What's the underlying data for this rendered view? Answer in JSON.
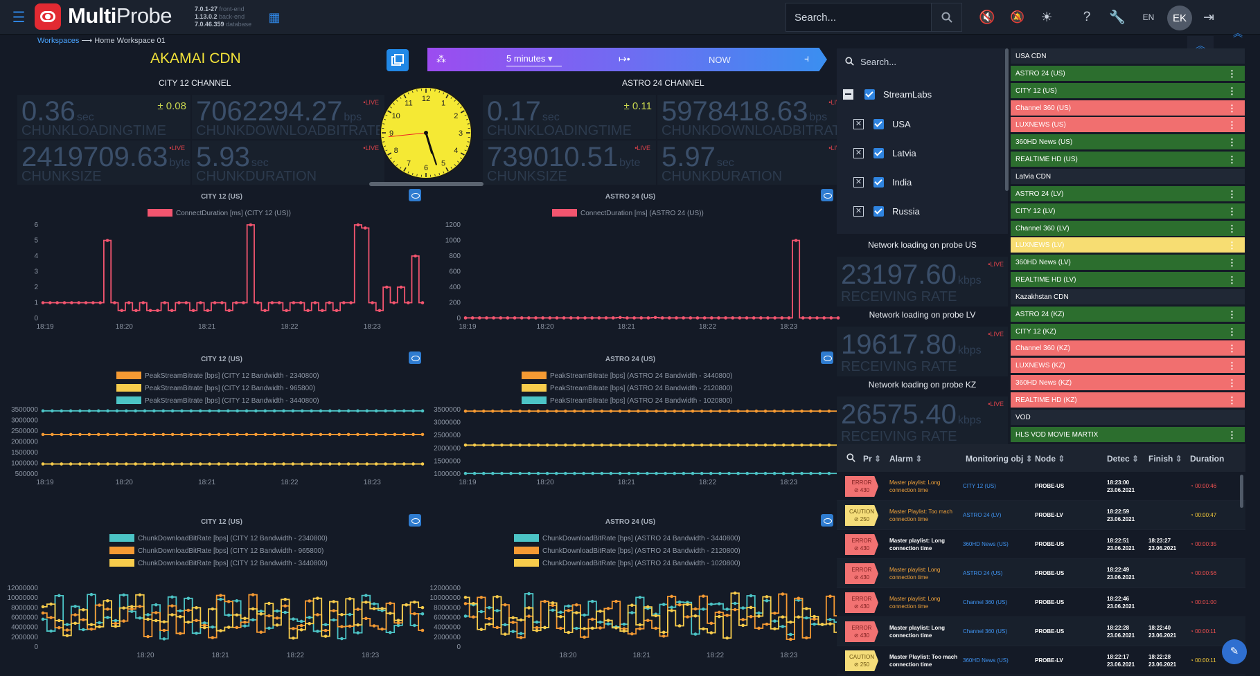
{
  "app": {
    "name_bold": "Multi",
    "name_light": "Probe",
    "versions": [
      {
        "v": "7.0.1-27",
        "l": "front-end"
      },
      {
        "v": "1.13.0.2",
        "l": "back-end"
      },
      {
        "v": "7.0.46.359",
        "l": "database"
      }
    ],
    "search_placeholder": "Search...",
    "lang": "EN",
    "avatar": "EK"
  },
  "breadcrumb": {
    "link": "Workspaces",
    "arrow": "⟶",
    "current": "Home Workspace 01"
  },
  "title": "AKAMAI CDN",
  "timebar": {
    "range": "5 minutes",
    "now": "NOW"
  },
  "channels": [
    {
      "name": "CITY 12 CHANNEL",
      "m": [
        {
          "val": "0.36",
          "unit": "sec",
          "label": "CHUNKLOADINGTIME",
          "delta": "± 0.08"
        },
        {
          "val": "7062294.27",
          "unit": "bps",
          "label": "CHUNKDOWNLOADBITRATE",
          "live": "•LIVE"
        },
        {
          "val": "2419709.63",
          "unit": "byte",
          "label": "CHUNKSIZE",
          "live": "•LIVE"
        },
        {
          "val": "5.93",
          "unit": "sec",
          "label": "CHUNKDURATION",
          "live": "•LIVE"
        }
      ]
    },
    {
      "name": "ASTRO 24 CHANNEL",
      "m": [
        {
          "val": "0.17",
          "unit": "sec",
          "label": "CHUNKLOADINGTIME",
          "delta": "± 0.11"
        },
        {
          "val": "5978418.63",
          "unit": "bps",
          "label": "CHUNKDOWNLOADBITRATE",
          "live": "•LIVE"
        },
        {
          "val": "739010.51",
          "unit": "byte",
          "label": "CHUNKSIZE",
          "live": "•LIVE"
        },
        {
          "val": "5.97",
          "unit": "sec",
          "label": "CHUNKDURATION",
          "live": "•LIVE"
        }
      ]
    }
  ],
  "clock": {
    "hour": 5,
    "minute": 27,
    "second": 44
  },
  "colors": {
    "pink": "#f3556f",
    "orange": "#f59a33",
    "yellow": "#f7cc4c",
    "teal": "#4cc4c6",
    "green": "#2c6e2e",
    "red": "#f16f6f",
    "accent": "#2f84e0"
  },
  "chart_data": [
    {
      "type": "line",
      "title": "CITY 12 (US)",
      "legend": [
        "ConnectDuration [ms] (CITY 12 (US))"
      ],
      "xticks": [
        "18:19",
        "18:20",
        "18:21",
        "18:22",
        "18:23"
      ],
      "ylim": [
        0,
        6
      ],
      "yticks": [
        0,
        1,
        2,
        3,
        4,
        5,
        6
      ],
      "series": [
        {
          "color": "pink",
          "values": [
            1,
            1,
            1,
            1,
            1,
            1,
            1,
            1,
            1,
            5,
            1,
            0.5,
            1,
            0.5,
            1,
            0.5,
            0.5,
            1,
            0.5,
            1,
            1,
            0.5,
            1,
            0.5,
            1,
            1,
            0.5,
            1,
            1,
            6,
            1,
            0.5,
            1,
            1,
            0.5,
            1,
            1,
            0.5,
            1,
            0.5,
            1,
            0.5,
            1,
            1,
            6,
            5.8,
            1,
            0.5,
            2,
            1,
            2,
            1,
            4,
            1
          ]
        }
      ]
    },
    {
      "type": "line",
      "title": "ASTRO 24 (US)",
      "legend": [
        "ConnectDuration [ms] (ASTRO 24 (US))"
      ],
      "xticks": [
        "18:19",
        "18:20",
        "18:21",
        "18:22",
        "18:23"
      ],
      "ylim": [
        0,
        1200
      ],
      "yticks": [
        0,
        200,
        400,
        600,
        800,
        1000,
        1200
      ],
      "series": [
        {
          "color": "pink",
          "values": [
            5,
            5,
            5,
            5,
            5,
            5,
            5,
            5,
            5,
            5,
            5,
            5,
            5,
            5,
            5,
            5,
            5,
            5,
            5,
            5,
            5,
            5,
            10,
            5,
            5,
            5,
            5,
            10,
            5,
            5,
            5,
            5,
            5,
            5,
            5,
            5,
            5,
            5,
            5,
            5,
            5,
            5,
            5,
            5,
            5,
            5,
            5,
            1000,
            5,
            5,
            5,
            5,
            5,
            5
          ]
        }
      ]
    },
    {
      "type": "line",
      "title": "CITY 12 (US)",
      "legend": [
        "PeakStreamBitrate [bps] (CITY 12 Bandwidth - 2340800)",
        "PeakStreamBitrate [bps] (CITY 12 Bandwidth - 965800)",
        "PeakStreamBitrate [bps] (CITY 12 Bandwidth - 3440800)"
      ],
      "xticks": [
        "18:19",
        "18:20",
        "18:21",
        "18:22",
        "18:23"
      ],
      "ylim": [
        500000,
        3500000
      ],
      "yticks": [
        500000,
        1000000,
        1500000,
        2000000,
        2500000,
        3000000,
        3500000
      ],
      "series": [
        {
          "color": "orange",
          "const": 2340800
        },
        {
          "color": "yellow",
          "const": 965800
        },
        {
          "color": "teal",
          "const": 3440800
        }
      ]
    },
    {
      "type": "line",
      "title": "ASTRO 24 (US)",
      "legend": [
        "PeakStreamBitrate [bps] (ASTRO 24 Bandwidth - 3440800)",
        "PeakStreamBitrate [bps] (ASTRO 24 Bandwidth - 2120800)",
        "PeakStreamBitrate [bps] (ASTRO 24 Bandwidth - 1020800)"
      ],
      "xticks": [
        "18:19",
        "18:20",
        "18:21",
        "18:22",
        "18:23"
      ],
      "ylim": [
        1000000,
        3500000
      ],
      "yticks": [
        1000000,
        1500000,
        2000000,
        2500000,
        3000000,
        3500000
      ],
      "series": [
        {
          "color": "orange",
          "const": 3440800
        },
        {
          "color": "yellow",
          "const": 2120800
        },
        {
          "color": "teal",
          "const": 1020800
        }
      ]
    },
    {
      "type": "line",
      "title": "CITY 12 (US)",
      "legend": [
        "ChunkDownloadBitRate [bps] (CITY 12 Bandwidth - 2340800)",
        "ChunkDownloadBitRate [bps] (CITY 12 Bandwidth - 965800)",
        "ChunkDownloadBitRate [bps] (CITY 12 Bandwidth - 3440800)"
      ],
      "xticks": [
        "18:20",
        "18:21",
        "18:22",
        "18:23"
      ],
      "ylim": [
        0,
        12000000
      ],
      "yticks": [
        0,
        2000000,
        4000000,
        6000000,
        8000000,
        10000000,
        12000000
      ],
      "series": [
        {
          "color": "teal",
          "seed": 3
        },
        {
          "color": "orange",
          "seed": 7
        },
        {
          "color": "yellow",
          "seed": 11
        }
      ]
    },
    {
      "type": "line",
      "title": "ASTRO 24 (US)",
      "legend": [
        "ChunkDownloadBitRate [bps] (ASTRO 24 Bandwidth - 3440800)",
        "ChunkDownloadBitRate [bps] (ASTRO 24 Bandwidth - 2120800)",
        "ChunkDownloadBitRate [bps] (ASTRO 24 Bandwidth - 1020800)"
      ],
      "xticks": [
        "18:20",
        "18:21",
        "18:22",
        "18:23"
      ],
      "ylim": [
        0,
        12000000
      ],
      "yticks": [
        0,
        2000000,
        4000000,
        6000000,
        8000000,
        10000000,
        12000000
      ],
      "series": [
        {
          "color": "teal",
          "seed": 5
        },
        {
          "color": "orange",
          "seed": 13
        },
        {
          "color": "yellow",
          "seed": 17
        }
      ]
    }
  ],
  "filter": {
    "search": "Search...",
    "group": "StreamLabs",
    "items": [
      "USA",
      "Latvia",
      "India",
      "Russia"
    ]
  },
  "probes": [
    {
      "title": "Network loading on probe US",
      "val": "23197.60",
      "unit": "kbps",
      "label": "RECEIVING RATE",
      "live": "•LIVE"
    },
    {
      "title": "Network loading on probe LV",
      "val": "19617.80",
      "unit": "kbps",
      "label": "RECEIVING RATE",
      "live": "•LIVE"
    },
    {
      "title": "Network loading on probe KZ",
      "val": "26575.40",
      "unit": "kbps",
      "label": "RECEIVING RATE",
      "live": "•LIVE"
    }
  ],
  "channel_list": [
    {
      "t": "h",
      "name": "USA CDN"
    },
    {
      "t": "g",
      "name": "ASTRO 24 (US)"
    },
    {
      "t": "g",
      "name": "CITY 12 (US)"
    },
    {
      "t": "r",
      "name": "Channel 360 (US)"
    },
    {
      "t": "r",
      "name": "LUXNEWS (US)"
    },
    {
      "t": "g",
      "name": "360HD News (US)"
    },
    {
      "t": "g",
      "name": "REALTIME HD (US)"
    },
    {
      "t": "h",
      "name": "Latvia CDN"
    },
    {
      "t": "g",
      "name": "ASTRO 24 (LV)"
    },
    {
      "t": "g",
      "name": "CITY 12 (LV)"
    },
    {
      "t": "g",
      "name": "Channel 360 (LV)"
    },
    {
      "t": "y",
      "name": "LUXNEWS (LV)"
    },
    {
      "t": "g",
      "name": "360HD News (LV)"
    },
    {
      "t": "g",
      "name": "REALTIME HD (LV)"
    },
    {
      "t": "h",
      "name": "Kazakhstan CDN"
    },
    {
      "t": "g",
      "name": "ASTRO 24 (KZ)"
    },
    {
      "t": "g",
      "name": "CITY 12 (KZ)"
    },
    {
      "t": "r",
      "name": "Channel 360 (KZ)"
    },
    {
      "t": "r",
      "name": "LUXNEWS (KZ)"
    },
    {
      "t": "r",
      "name": "360HD News (KZ)"
    },
    {
      "t": "r",
      "name": "REALTIME HD (KZ)"
    },
    {
      "t": "h",
      "name": "VOD"
    },
    {
      "t": "g",
      "name": "HLS VOD MOVIE MARTIX"
    }
  ],
  "alarm": {
    "headers": [
      "Pr",
      "Alarm",
      "Monitoring obj",
      "Node",
      "Detec",
      "Finish",
      "Duration"
    ],
    "rows": [
      {
        "sev": "ERROR",
        "code": "430",
        "type": "err",
        "alarm": "Master playlist: Long connection time",
        "bold": false,
        "obj": "CITY 12 (US)",
        "node": "PROBE-US",
        "det": [
          "18:23:00",
          "23.06.2021"
        ],
        "fin": [
          "",
          ""
        ],
        "dur": "00:00:46"
      },
      {
        "sev": "CAUTION",
        "code": "250",
        "type": "cau",
        "alarm": "Master Playlist: Too mach connection time",
        "bold": false,
        "obj": "ASTRO 24 (LV)",
        "node": "PROBE-LV",
        "det": [
          "18:22:59",
          "23.06.2021"
        ],
        "fin": [
          "",
          ""
        ],
        "dur": "00:00:47"
      },
      {
        "sev": "ERROR",
        "code": "430",
        "type": "err",
        "alarm": "Master playlist: Long connection time",
        "bold": true,
        "obj": "360HD News (US)",
        "node": "PROBE-US",
        "det": [
          "18:22:51",
          "23.06.2021"
        ],
        "fin": [
          "18:23:27",
          "23.06.2021"
        ],
        "dur": "00:00:35"
      },
      {
        "sev": "ERROR",
        "code": "430",
        "type": "err",
        "alarm": "Master playlist: Long connection time",
        "bold": false,
        "obj": "ASTRO 24 (US)",
        "node": "PROBE-US",
        "det": [
          "18:22:49",
          "23.06.2021"
        ],
        "fin": [
          "",
          ""
        ],
        "dur": "00:00:56"
      },
      {
        "sev": "ERROR",
        "code": "430",
        "type": "err",
        "alarm": "Master playlist: Long connection time",
        "bold": false,
        "obj": "Channel 360 (US)",
        "node": "PROBE-US",
        "det": [
          "18:22:46",
          "23.06.2021"
        ],
        "fin": [
          "",
          ""
        ],
        "dur": "00:01:00"
      },
      {
        "sev": "ERROR",
        "code": "430",
        "type": "err",
        "alarm": "Master playlist: Long connection time",
        "bold": true,
        "obj": "Channel 360 (US)",
        "node": "PROBE-US",
        "det": [
          "18:22:28",
          "23.06.2021"
        ],
        "fin": [
          "18:22:40",
          "23.06.2021"
        ],
        "dur": "00:00:11"
      },
      {
        "sev": "CAUTION",
        "code": "250",
        "type": "cau",
        "alarm": "Master Playlist: Too mach connection time",
        "bold": true,
        "obj": "360HD News (US)",
        "node": "PROBE-LV",
        "det": [
          "18:22:17",
          "23.06.2021"
        ],
        "fin": [
          "18:22:28",
          "23.06.2021"
        ],
        "dur": "00:00:11"
      }
    ]
  }
}
